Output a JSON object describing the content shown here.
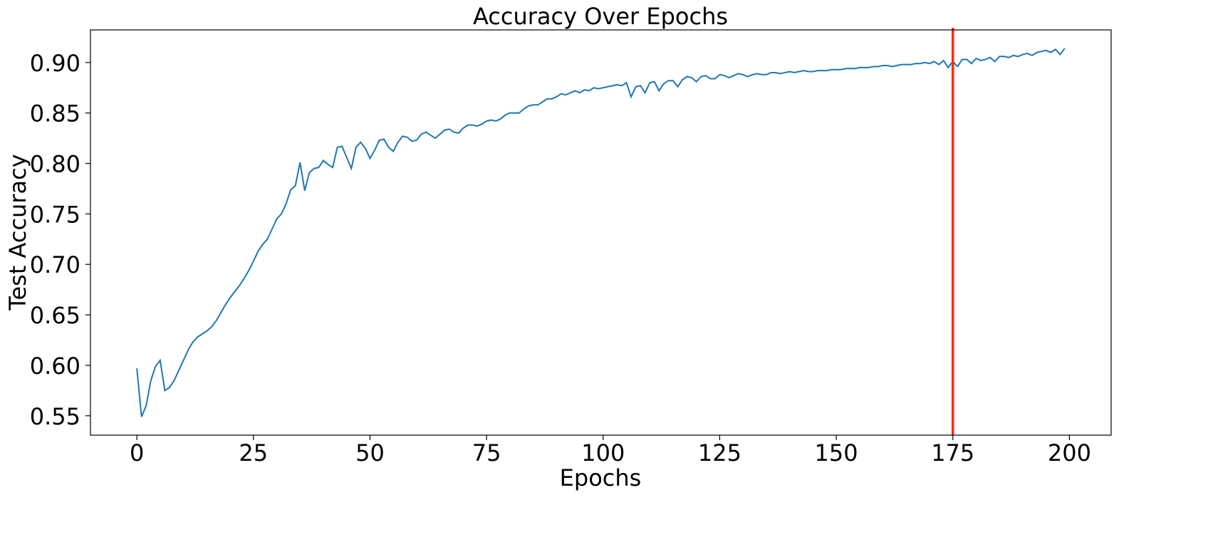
{
  "chart_data": {
    "type": "line",
    "title": "Accuracy Over Epochs",
    "x_label": "Epochs",
    "y_label": "Test Accuracy",
    "x": [
      0,
      1,
      2,
      3,
      4,
      5,
      6,
      7,
      8,
      9,
      10,
      11,
      12,
      13,
      14,
      15,
      16,
      17,
      18,
      19,
      20,
      21,
      22,
      23,
      24,
      25,
      26,
      27,
      28,
      29,
      30,
      31,
      32,
      33,
      34,
      35,
      36,
      37,
      38,
      39,
      40,
      41,
      42,
      43,
      44,
      45,
      46,
      47,
      48,
      49,
      50,
      51,
      52,
      53,
      54,
      55,
      56,
      57,
      58,
      59,
      60,
      61,
      62,
      63,
      64,
      65,
      66,
      67,
      68,
      69,
      70,
      71,
      72,
      73,
      74,
      75,
      76,
      77,
      78,
      79,
      80,
      81,
      82,
      83,
      84,
      85,
      86,
      87,
      88,
      89,
      90,
      91,
      92,
      93,
      94,
      95,
      96,
      97,
      98,
      99,
      100,
      101,
      102,
      103,
      104,
      105,
      106,
      107,
      108,
      109,
      110,
      111,
      112,
      113,
      114,
      115,
      116,
      117,
      118,
      119,
      120,
      121,
      122,
      123,
      124,
      125,
      126,
      127,
      128,
      129,
      130,
      131,
      132,
      133,
      134,
      135,
      136,
      137,
      138,
      139,
      140,
      141,
      142,
      143,
      144,
      145,
      146,
      147,
      148,
      149,
      150,
      151,
      152,
      153,
      154,
      155,
      156,
      157,
      158,
      159,
      160,
      161,
      162,
      163,
      164,
      165,
      166,
      167,
      168,
      169,
      170,
      171,
      172,
      173,
      174,
      175,
      176,
      177,
      178,
      179,
      180,
      181,
      182,
      183,
      184,
      185,
      186,
      187,
      188,
      189,
      190,
      191,
      192,
      193,
      194,
      195,
      196,
      197,
      198,
      199
    ],
    "series": [
      {
        "color": "#1f77b4",
        "values": [
          0.597,
          0.549,
          0.56,
          0.585,
          0.599,
          0.605,
          0.575,
          0.578,
          0.585,
          0.595,
          0.605,
          0.615,
          0.623,
          0.628,
          0.631,
          0.634,
          0.638,
          0.644,
          0.652,
          0.66,
          0.667,
          0.673,
          0.679,
          0.686,
          0.694,
          0.703,
          0.713,
          0.72,
          0.725,
          0.735,
          0.745,
          0.75,
          0.76,
          0.774,
          0.778,
          0.801,
          0.773,
          0.791,
          0.795,
          0.796,
          0.803,
          0.799,
          0.796,
          0.816,
          0.817,
          0.806,
          0.795,
          0.816,
          0.821,
          0.815,
          0.805,
          0.813,
          0.823,
          0.824,
          0.816,
          0.812,
          0.821,
          0.827,
          0.826,
          0.822,
          0.823,
          0.829,
          0.831,
          0.828,
          0.825,
          0.829,
          0.833,
          0.834,
          0.831,
          0.83,
          0.835,
          0.838,
          0.838,
          0.837,
          0.839,
          0.842,
          0.843,
          0.842,
          0.844,
          0.848,
          0.85,
          0.85,
          0.85,
          0.854,
          0.857,
          0.858,
          0.858,
          0.861,
          0.864,
          0.864,
          0.866,
          0.869,
          0.868,
          0.87,
          0.872,
          0.87,
          0.873,
          0.872,
          0.875,
          0.874,
          0.875,
          0.876,
          0.877,
          0.878,
          0.877,
          0.88,
          0.866,
          0.876,
          0.877,
          0.87,
          0.88,
          0.881,
          0.872,
          0.879,
          0.882,
          0.882,
          0.876,
          0.883,
          0.886,
          0.885,
          0.881,
          0.886,
          0.887,
          0.884,
          0.884,
          0.888,
          0.887,
          0.885,
          0.887,
          0.889,
          0.888,
          0.886,
          0.888,
          0.889,
          0.888,
          0.888,
          0.89,
          0.89,
          0.889,
          0.89,
          0.891,
          0.89,
          0.891,
          0.892,
          0.891,
          0.891,
          0.892,
          0.892,
          0.892,
          0.893,
          0.893,
          0.893,
          0.894,
          0.894,
          0.894,
          0.895,
          0.895,
          0.895,
          0.896,
          0.896,
          0.897,
          0.897,
          0.896,
          0.897,
          0.898,
          0.898,
          0.898,
          0.899,
          0.899,
          0.9,
          0.899,
          0.901,
          0.898,
          0.902,
          0.895,
          0.901,
          0.896,
          0.903,
          0.903,
          0.899,
          0.904,
          0.902,
          0.903,
          0.905,
          0.901,
          0.906,
          0.906,
          0.905,
          0.907,
          0.906,
          0.908,
          0.909,
          0.907,
          0.91,
          0.911,
          0.912,
          0.91,
          0.913,
          0.908,
          0.914
        ]
      }
    ],
    "vertical_line": {
      "x": 175,
      "color": "#ff2a00"
    },
    "xlim": [
      -9.95,
      208.95
    ],
    "ylim": [
      0.5308,
      0.9323
    ],
    "xticks": [
      0,
      25,
      50,
      75,
      100,
      125,
      150,
      175,
      200
    ],
    "yticks": [
      {
        "value": 0.55,
        "label": "0.55"
      },
      {
        "value": 0.6,
        "label": "0.60"
      },
      {
        "value": 0.65,
        "label": "0.65"
      },
      {
        "value": 0.7,
        "label": "0.70"
      },
      {
        "value": 0.75,
        "label": "0.75"
      },
      {
        "value": 0.8,
        "label": "0.80"
      },
      {
        "value": 0.85,
        "label": "0.85"
      },
      {
        "value": 0.9,
        "label": "0.90"
      }
    ],
    "grid": false
  }
}
